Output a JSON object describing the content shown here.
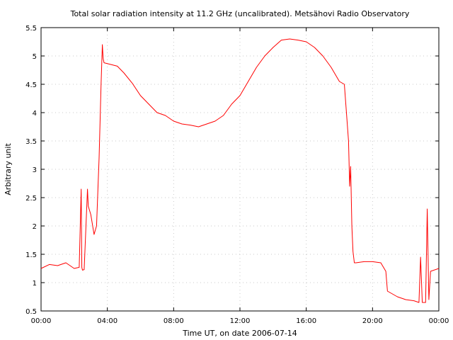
{
  "chart_data": {
    "type": "line",
    "title": "Total solar radiation intensity at 11.2 GHz (uncalibrated). Metsähovi Radio Observatory",
    "xlabel": "Time UT, on date 2006-07-14",
    "ylabel": "Arbitrary unit",
    "xlim": [
      0,
      24
    ],
    "ylim": [
      0.5,
      5.5
    ],
    "grid": true,
    "line_color": "#ff0000",
    "x_ticks": [
      {
        "value": 0,
        "label": "00:00"
      },
      {
        "value": 4,
        "label": "04:00"
      },
      {
        "value": 8,
        "label": "08:00"
      },
      {
        "value": 12,
        "label": "12:00"
      },
      {
        "value": 16,
        "label": "16:00"
      },
      {
        "value": 20,
        "label": "20:00"
      },
      {
        "value": 24,
        "label": "00:00"
      }
    ],
    "y_ticks": [
      {
        "value": 0.5,
        "label": "0.5"
      },
      {
        "value": 1,
        "label": "1"
      },
      {
        "value": 1.5,
        "label": "1.5"
      },
      {
        "value": 2,
        "label": "2"
      },
      {
        "value": 2.5,
        "label": "2.5"
      },
      {
        "value": 3,
        "label": "3"
      },
      {
        "value": 3.5,
        "label": "3.5"
      },
      {
        "value": 4,
        "label": "4"
      },
      {
        "value": 4.5,
        "label": "4.5"
      },
      {
        "value": 5,
        "label": "5"
      },
      {
        "value": 5.5,
        "label": "5.5"
      }
    ],
    "series": [
      {
        "x": [
          0.0,
          0.5,
          1.0,
          1.5,
          2.0,
          2.3,
          2.42,
          2.46,
          2.5,
          2.6,
          2.8,
          2.85,
          2.9,
          3.0,
          3.2,
          3.35,
          3.5,
          3.62,
          3.7,
          3.75,
          3.8,
          4.2,
          4.6,
          5.0,
          5.5,
          6.0,
          6.5,
          7.0,
          7.5,
          8.0,
          8.5,
          9.0,
          9.5,
          10.0,
          10.5,
          11.0,
          11.5,
          12.0,
          12.5,
          13.0,
          13.5,
          14.0,
          14.5,
          15.0,
          15.5,
          16.0,
          16.5,
          17.0,
          17.5,
          18.0,
          18.3,
          18.55,
          18.62,
          18.68,
          18.75,
          18.82,
          18.9,
          19.0,
          19.5,
          20.0,
          20.5,
          20.8,
          20.9,
          21.5,
          22.0,
          22.5,
          22.8,
          22.9,
          23.0,
          23.2,
          23.3,
          23.4,
          23.5,
          24.0
        ],
        "y": [
          1.25,
          1.32,
          1.3,
          1.35,
          1.25,
          1.27,
          2.65,
          1.27,
          1.22,
          1.23,
          2.65,
          2.35,
          2.3,
          2.2,
          1.85,
          2.0,
          3.2,
          4.5,
          5.2,
          4.95,
          4.88,
          4.85,
          4.82,
          4.7,
          4.52,
          4.3,
          4.15,
          4.0,
          3.95,
          3.85,
          3.8,
          3.78,
          3.75,
          3.8,
          3.85,
          3.95,
          4.15,
          4.3,
          4.55,
          4.8,
          5.0,
          5.15,
          5.28,
          5.3,
          5.28,
          5.25,
          5.15,
          5.0,
          4.8,
          4.55,
          4.5,
          3.5,
          2.7,
          3.05,
          2.0,
          1.55,
          1.35,
          1.35,
          1.37,
          1.37,
          1.35,
          1.2,
          0.85,
          0.75,
          0.7,
          0.68,
          0.65,
          1.45,
          0.65,
          0.65,
          2.3,
          0.7,
          1.2,
          1.25
        ]
      }
    ]
  }
}
